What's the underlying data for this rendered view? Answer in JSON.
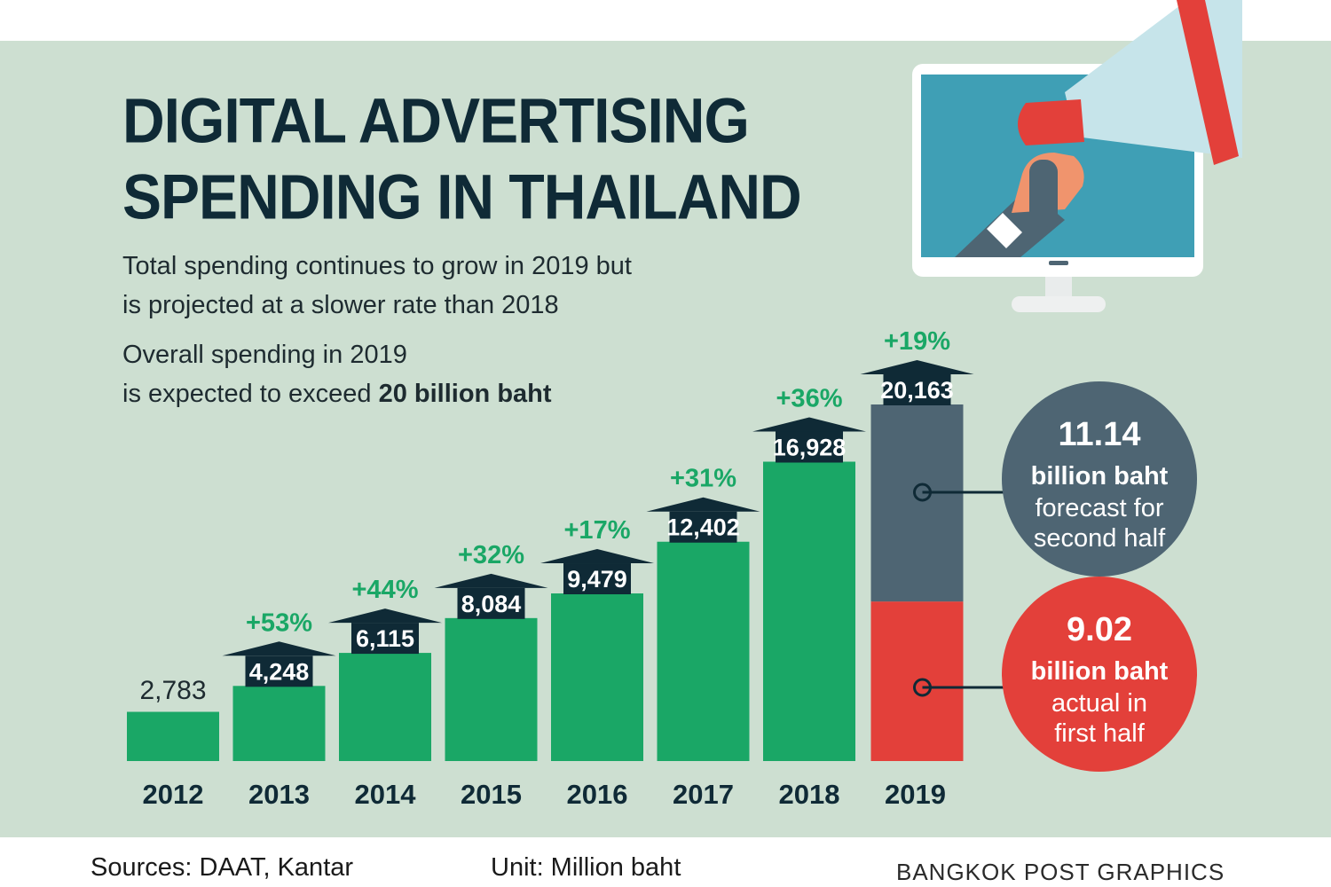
{
  "header": {
    "title_line1": "DIGITAL ADVERTISING",
    "title_line2": "SPENDING IN THAILAND",
    "subtitle_line1": "Total spending continues to grow in 2019 but",
    "subtitle_line2": "is projected at a slower rate than 2018",
    "note_line1": "Overall spending in 2019",
    "note_line2_prefix": "is expected to exceed ",
    "note_line2_bold": "20 billion baht"
  },
  "footer": {
    "sources": "Sources: DAAT, Kantar",
    "unit": "Unit: Million baht",
    "credit": "BANGKOK POST GRAPHICS"
  },
  "colors": {
    "panel": "#cddfd1",
    "bar": "#1aa766",
    "growth_text": "#1aa766",
    "arrow": "#0f2a36",
    "forecast": "#4e6573",
    "actual": "#e3403a",
    "title": "#0f2a36"
  },
  "illustration": {
    "icon": "monitor-megaphone-icon"
  },
  "chart_data": {
    "type": "bar",
    "categories": [
      "2012",
      "2013",
      "2014",
      "2015",
      "2016",
      "2017",
      "2018",
      "2019"
    ],
    "values": [
      2783,
      4248,
      6115,
      8084,
      9479,
      12402,
      16928,
      20163
    ],
    "value_labels": [
      "2,783",
      "4,248",
      "6,115",
      "8,084",
      "9,479",
      "12,402",
      "16,928",
      "20,163"
    ],
    "growth_labels": [
      "",
      "+53%",
      "+44%",
      "+32%",
      "+17%",
      "+31%",
      "+36%",
      "+19%"
    ],
    "stacked_last": {
      "category": "2019",
      "segments": [
        {
          "label": "actual in first half",
          "value_billion": "9.02",
          "value": 9020,
          "line1": "billion baht",
          "line2": "actual in",
          "line3": "first half"
        },
        {
          "label": "forecast for second half",
          "value_billion": "11.14",
          "value": 11140,
          "line1": "billion baht",
          "line2": "forecast for",
          "line3": "second half"
        }
      ]
    },
    "unit": "Million baht",
    "ylim": [
      0,
      20163
    ],
    "grid": false,
    "legend": "none"
  }
}
